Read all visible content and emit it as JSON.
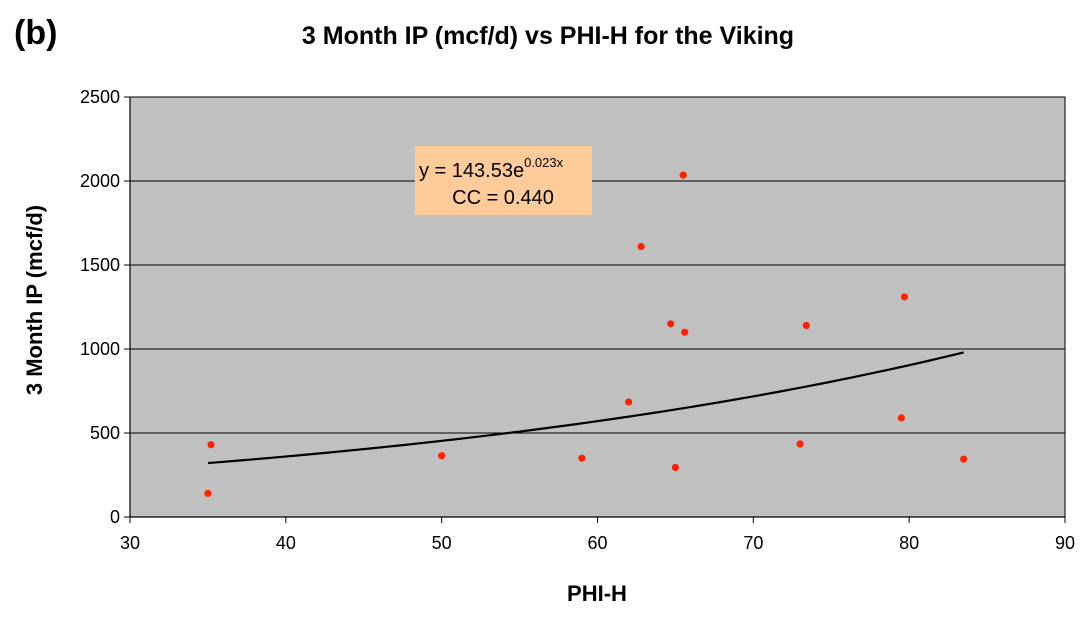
{
  "panel_label": "(b)",
  "chart_data": {
    "type": "scatter",
    "title": "3 Month IP (mcf/d) vs PHI-H for the Viking",
    "xlabel": "PHI-H",
    "ylabel": "3 Month IP (mcf/d)",
    "xlim": [
      30,
      90
    ],
    "ylim": [
      0,
      2500
    ],
    "xticks": [
      "30",
      "40",
      "50",
      "60",
      "70",
      "80",
      "90"
    ],
    "yticks": [
      "0",
      "500",
      "1000",
      "1500",
      "2000",
      "2500"
    ],
    "grid": "horizontal",
    "legend": "none",
    "colors": {
      "plot_bg": "#c0c0c0",
      "point": "#ff2200",
      "trend": "#000000",
      "annotation_bg": "#ffcc99"
    },
    "points": [
      {
        "x": 35,
        "y": 140
      },
      {
        "x": 35.2,
        "y": 430
      },
      {
        "x": 50,
        "y": 365
      },
      {
        "x": 59,
        "y": 350
      },
      {
        "x": 62,
        "y": 685
      },
      {
        "x": 62.8,
        "y": 1610
      },
      {
        "x": 64.7,
        "y": 1150
      },
      {
        "x": 65,
        "y": 295
      },
      {
        "x": 65.5,
        "y": 2035
      },
      {
        "x": 65.6,
        "y": 1100
      },
      {
        "x": 73,
        "y": 435
      },
      {
        "x": 73.4,
        "y": 1140
      },
      {
        "x": 79.5,
        "y": 590
      },
      {
        "x": 79.7,
        "y": 1310
      },
      {
        "x": 83.5,
        "y": 345
      }
    ],
    "trendline": {
      "type": "exponential",
      "a": 143.53,
      "b": 0.023,
      "x_range": [
        35,
        83.5
      ]
    },
    "annotation": {
      "equation_prefix": "y = 143.53e",
      "equation_exponent": "0.023x",
      "cc": "CC = 0.440"
    }
  }
}
